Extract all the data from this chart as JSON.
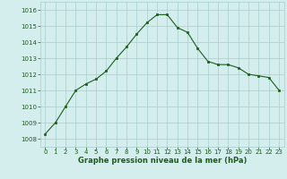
{
  "x": [
    0,
    1,
    2,
    3,
    4,
    5,
    6,
    7,
    8,
    9,
    10,
    11,
    12,
    13,
    14,
    15,
    16,
    17,
    18,
    19,
    20,
    21,
    22,
    23
  ],
  "y": [
    1008.3,
    1009.0,
    1010.0,
    1011.0,
    1011.4,
    1011.7,
    1012.2,
    1013.0,
    1013.7,
    1014.5,
    1015.2,
    1015.7,
    1015.7,
    1014.9,
    1014.6,
    1013.6,
    1012.8,
    1012.6,
    1012.6,
    1012.4,
    1012.0,
    1011.9,
    1011.8,
    1011.0
  ],
  "line_color": "#1a5e1a",
  "marker_color": "#1a5e1a",
  "bg_color": "#d4eded",
  "grid_color": "#a8cccc",
  "title": "Graphe pression niveau de la mer (hPa)",
  "ylim_min": 1007.5,
  "ylim_max": 1016.5,
  "xlim_min": -0.5,
  "xlim_max": 23.5,
  "yticks": [
    1008,
    1009,
    1010,
    1011,
    1012,
    1013,
    1014,
    1015,
    1016
  ],
  "xticks": [
    0,
    1,
    2,
    3,
    4,
    5,
    6,
    7,
    8,
    9,
    10,
    11,
    12,
    13,
    14,
    15,
    16,
    17,
    18,
    19,
    20,
    21,
    22,
    23
  ],
  "tick_fontsize": 5.0,
  "title_fontsize": 6.0
}
